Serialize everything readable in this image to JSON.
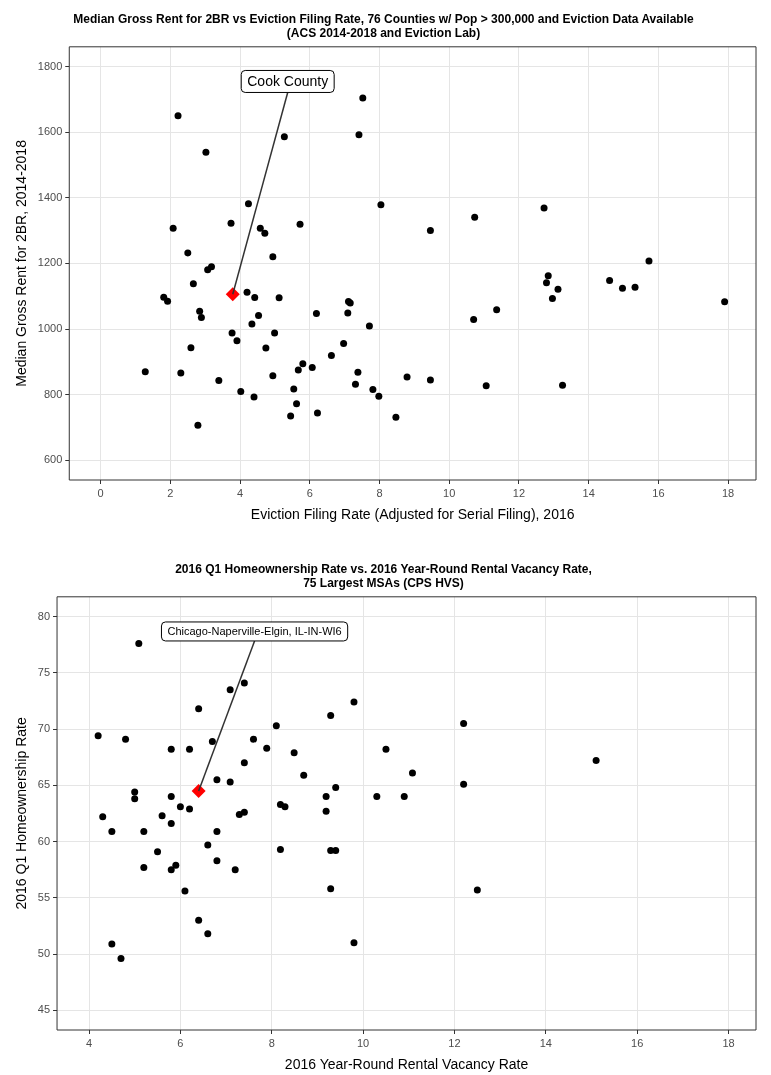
{
  "chart_data": [
    {
      "type": "scatter",
      "title": "Median Gross Rent for 2BR vs Eviction Filing Rate, 76 Counties w/ Pop > 300,000 and Eviction Data Available\n(ACS 2014-2018 and Eviction Lab)",
      "xlabel": "Eviction Filing Rate (Adjusted for Serial Filing), 2016",
      "ylabel": "Median Gross Rent for 2BR, 2014-2018",
      "xlim": [
        -0.9,
        18.8
      ],
      "xticks": [
        0,
        2,
        4,
        6,
        8,
        10,
        12,
        14,
        16,
        18
      ],
      "ylim": [
        540,
        1860
      ],
      "yticks": [
        600,
        800,
        1000,
        1200,
        1400,
        1600,
        1800
      ],
      "grid": true,
      "marker": "circle",
      "series": [
        {
          "color": "#000000",
          "x": [
            2.22,
            7.52,
            7.41,
            5.27,
            3.02,
            2.08,
            3.74,
            4.24,
            4.58,
            4.71,
            5.72,
            8.04,
            2.5,
            4.94,
            3.07,
            3.18,
            2.66,
            4.2,
            4.42,
            5.12,
            1.81,
            1.92,
            2.84,
            2.89,
            4.53,
            4.34,
            6.19,
            7.09,
            7.11,
            7.16,
            7.71,
            3.77,
            3.91,
            4.99,
            4.74,
            2.59,
            6.97,
            6.62,
            5.8,
            5.67,
            6.07,
            7.38,
            7.31,
            7.81,
            7.98,
            8.79,
            8.47,
            1.28,
            2.3,
            3.39,
            4.02,
            4.4,
            4.94,
            5.54,
            5.62,
            5.45,
            6.22,
            2.79,
            9.46,
            10.73,
            12.72,
            15.73,
            12.84,
            12.79,
            13.12,
            12.96,
            14.6,
            14.97,
            15.33,
            17.9,
            10.7,
            11.36,
            9.46,
            11.06,
            13.25
          ],
          "values": [
            1650,
            1704,
            1592,
            1586,
            1539,
            1307,
            1322,
            1382,
            1307,
            1292,
            1319,
            1379,
            1232,
            1220,
            1181,
            1190,
            1138,
            1112,
            1096,
            1095,
            1097,
            1085,
            1054,
            1035,
            1041,
            1015,
            1047,
            1049,
            1084,
            1079,
            1009,
            988,
            964,
            988,
            942,
            943,
            956,
            919,
            894,
            875,
            883,
            868,
            832,
            816,
            795,
            854,
            731,
            870,
            866,
            843,
            810,
            793,
            858,
            817,
            772,
            735,
            744,
            707,
            1300,
            1341,
            1369,
            1207,
            1162,
            1141,
            1121,
            1093,
            1148,
            1124,
            1127,
            1083,
            1029,
            1059,
            845,
            827,
            829
          ]
        },
        {
          "color": "#ff0000",
          "marker": "diamond",
          "x": [
            3.79
          ],
          "values": [
            1106
          ]
        }
      ],
      "annotations": [
        {
          "text": "Cook County",
          "x": 3.79,
          "y": 1106
        }
      ]
    },
    {
      "type": "scatter",
      "title": "2016 Q1 Homeownership Rate vs. 2016 Year-Round Rental Vacancy Rate,\n75 Largest MSAs (CPS HVS)",
      "xlabel": "2016 Year-Round Rental Vacancy Rate",
      "ylabel": "2016 Q1 Homeownership Rate",
      "xlim": [
        3.3,
        18.6
      ],
      "xticks": [
        4,
        6,
        8,
        10,
        12,
        14,
        16,
        18
      ],
      "ylim": [
        43.25,
        81.75
      ],
      "yticks": [
        45,
        50,
        55,
        60,
        65,
        70,
        75,
        80
      ],
      "grid": true,
      "marker": "circle",
      "series": [
        {
          "color": "#000000",
          "x": [
            5.09,
            7.4,
            7.09,
            6.4,
            9.8,
            9.29,
            8.1,
            4.2,
            4.8,
            6.7,
            7.6,
            5.8,
            6.2,
            7.89,
            8.49,
            10.5,
            7.4,
            8.7,
            11.08,
            6.8,
            7.09,
            9.4,
            5.0,
            5.0,
            5.8,
            9.19,
            10.3,
            10.9,
            6.0,
            6.2,
            8.19,
            8.29,
            5.6,
            7.29,
            7.4,
            9.19,
            4.3,
            5.8,
            4.5,
            5.2,
            6.8,
            6.6,
            5.5,
            8.19,
            9.29,
            9.4,
            6.8,
            5.2,
            5.9,
            5.8,
            7.2,
            6.1,
            9.29,
            6.4,
            6.6,
            9.8,
            4.5,
            4.7,
            12.2,
            15.1,
            12.2,
            12.5
          ],
          "values": [
            77.6,
            74.1,
            73.5,
            71.8,
            72.4,
            71.2,
            70.3,
            69.4,
            69.1,
            68.9,
            69.1,
            68.2,
            68.2,
            68.3,
            67.9,
            68.2,
            67.0,
            65.9,
            66.1,
            65.5,
            65.3,
            64.8,
            64.4,
            63.8,
            64.0,
            64.0,
            64.0,
            64.0,
            63.1,
            62.9,
            63.3,
            63.1,
            62.3,
            62.4,
            62.6,
            62.7,
            62.2,
            61.6,
            60.9,
            60.9,
            60.9,
            59.7,
            59.1,
            59.3,
            59.2,
            59.2,
            58.3,
            57.7,
            57.9,
            57.5,
            57.5,
            55.6,
            55.8,
            53.0,
            51.8,
            51.0,
            50.9,
            49.6,
            70.5,
            67.2,
            65.1,
            55.7
          ]
        },
        {
          "color": "#ff0000",
          "marker": "diamond",
          "x": [
            6.4
          ],
          "values": [
            64.5
          ]
        }
      ],
      "annotations": [
        {
          "text": "Chicago-Naperville-Elgin, IL-IN-WI6",
          "x": 6.4,
          "y": 64.5
        }
      ]
    }
  ]
}
